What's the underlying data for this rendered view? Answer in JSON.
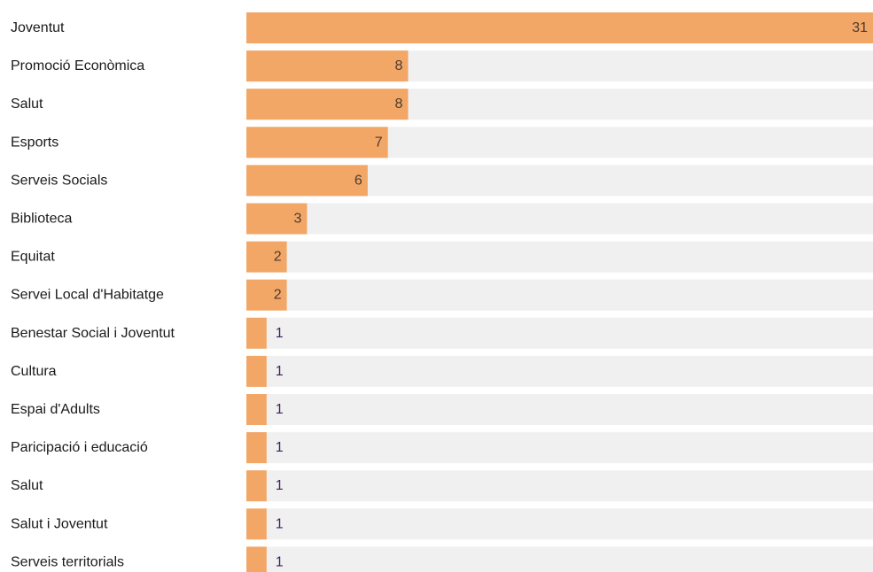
{
  "chart_data": {
    "type": "bar",
    "orientation": "horizontal",
    "categories": [
      "Joventut",
      "Promoció Econòmica",
      "Salut",
      "Esports",
      "Serveis Socials",
      "Biblioteca",
      "Equitat",
      "Servei Local d'Habitatge",
      "Benestar Social i Joventut",
      "Cultura",
      "Espai d'Adults",
      "Paricipació i educació",
      "Salut",
      "Salut i Joventut",
      "Serveis territorials"
    ],
    "values": [
      31,
      8,
      8,
      7,
      6,
      3,
      2,
      2,
      1,
      1,
      1,
      1,
      1,
      1,
      1
    ],
    "xlim": [
      0,
      31
    ],
    "title": "",
    "xlabel": "",
    "ylabel": "",
    "grid": false,
    "legend": "none",
    "colors": {
      "bar": "#f2a766",
      "track": "#f0f0f0",
      "value_text_inside": "#4a3a30",
      "value_text_outside": "#3a1f5c",
      "category_text": "#1a1a1a"
    }
  }
}
